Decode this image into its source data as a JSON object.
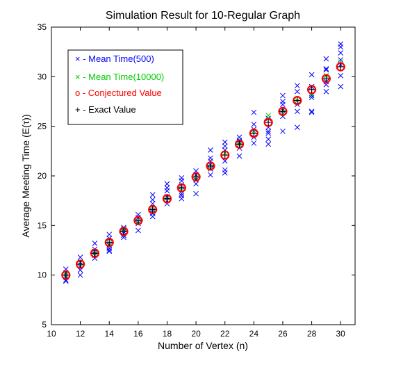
{
  "chart_data": {
    "type": "scatter",
    "title": "Simulation Result for 10-Regular Graph",
    "xlabel": "Number of Vertex (n)",
    "ylabel": "Average Meeting Time (E(τ))",
    "xlim": [
      10,
      31
    ],
    "ylim": [
      5,
      35
    ],
    "xticks": [
      10,
      12,
      14,
      16,
      18,
      20,
      22,
      24,
      26,
      28,
      30
    ],
    "yticks": [
      5,
      10,
      15,
      20,
      25,
      30,
      35
    ],
    "grid": false,
    "legend_position": "top-left",
    "legend": [
      {
        "label": "× - Mean Time(500)",
        "color": "#0000ff"
      },
      {
        "label": "× - Mean Time(10000)",
        "color": "#00cc00"
      },
      {
        "label": "o - Conjectured Value",
        "color": "#ff0000"
      },
      {
        "label": "+ - Exact Value",
        "color": "#000000"
      }
    ],
    "series": [
      {
        "marker": "x",
        "color": "#0000ff",
        "x": [
          11,
          11,
          11,
          11,
          11,
          12,
          12,
          12,
          12,
          12,
          13,
          13,
          13,
          13,
          13,
          14,
          14,
          14,
          14,
          14,
          14,
          15,
          15,
          15,
          15,
          15,
          16,
          16,
          16,
          16,
          16,
          17,
          17,
          17,
          17,
          17,
          17,
          18,
          18,
          18,
          18,
          18,
          18,
          19,
          19,
          19,
          19,
          19,
          19,
          20,
          20,
          20,
          20,
          20,
          21,
          21,
          21,
          21,
          21,
          21,
          22,
          22,
          22,
          22,
          22,
          22,
          23,
          23,
          23,
          23,
          23,
          24,
          24,
          24,
          24,
          24,
          25,
          25,
          25,
          25,
          25,
          25,
          26,
          26,
          26,
          26,
          26,
          26,
          27,
          27,
          27,
          27,
          27,
          28,
          28,
          28,
          28,
          28,
          28,
          29,
          29,
          29,
          29,
          29,
          29,
          30,
          30,
          30,
          30,
          30,
          30,
          30
        ],
        "y": [
          10.6,
          9.5,
          10.2,
          9.8,
          9.4,
          11.8,
          10.5,
          10.0,
          11.3,
          10.9,
          13.2,
          11.7,
          12.6,
          12.0,
          12.4,
          14.1,
          12.4,
          13.7,
          12.7,
          13.0,
          12.5,
          14.6,
          13.8,
          14.8,
          14.2,
          14.0,
          16.1,
          14.5,
          15.2,
          15.8,
          15.4,
          18.1,
          15.9,
          17.2,
          16.5,
          17.6,
          16.2,
          19.2,
          17.2,
          18.5,
          17.9,
          18.8,
          17.5,
          19.8,
          17.7,
          18.9,
          18.2,
          19.5,
          18.0,
          20.5,
          18.2,
          19.6,
          20.1,
          19.2,
          22.6,
          20.1,
          21.5,
          21.8,
          20.7,
          21.1,
          23.4,
          20.3,
          22.6,
          21.5,
          20.6,
          23.0,
          23.9,
          22.0,
          23.4,
          22.8,
          23.6,
          26.4,
          23.3,
          25.2,
          24.7,
          23.9,
          25.8,
          23.2,
          24.5,
          23.7,
          24.9,
          24.3,
          28.1,
          24.5,
          27.2,
          26.6,
          27.5,
          26.0,
          29.1,
          24.9,
          28.5,
          27.2,
          26.5,
          30.2,
          26.5,
          29.0,
          26.4,
          28.1,
          27.9,
          31.8,
          28.5,
          30.8,
          29.2,
          30.7,
          29.5,
          33.3,
          29.0,
          32.4,
          31.7,
          31.2,
          30.1,
          33.0
        ]
      },
      {
        "marker": "x",
        "color": "#00cc00",
        "x": [
          11,
          12,
          13,
          14,
          15,
          16,
          17,
          18,
          19,
          20,
          21,
          22,
          23,
          24,
          25,
          26,
          27,
          28,
          29,
          30
        ],
        "y": [
          10.0,
          11.2,
          12.2,
          13.2,
          14.7,
          15.4,
          16.7,
          17.8,
          18.7,
          19.8,
          20.9,
          22.3,
          23.2,
          24.5,
          26.1,
          26.4,
          27.6,
          28.2,
          30.1,
          31.5
        ]
      },
      {
        "marker": "o",
        "color": "#ff0000",
        "x": [
          11,
          12,
          13,
          14,
          15,
          16,
          17,
          18,
          19,
          20,
          21,
          22,
          23,
          24,
          25,
          26,
          27,
          28,
          29,
          30
        ],
        "y": [
          10.0,
          11.1,
          12.2,
          13.3,
          14.4,
          15.5,
          16.6,
          17.7,
          18.8,
          19.9,
          21.0,
          22.1,
          23.2,
          24.3,
          25.4,
          26.5,
          27.6,
          28.7,
          29.8,
          31.0
        ]
      },
      {
        "marker": "+",
        "color": "#000000",
        "x": [
          11,
          12,
          13,
          14,
          15,
          16,
          17,
          18,
          19,
          20,
          21,
          22,
          23,
          24,
          25,
          26,
          27,
          28,
          29,
          30
        ],
        "y": [
          10.0,
          11.1,
          12.2,
          13.3,
          14.4,
          15.5,
          16.6,
          17.7,
          18.8,
          19.9,
          21.0,
          22.1,
          23.2,
          24.3,
          25.4,
          26.5,
          27.6,
          28.7,
          29.8,
          31.0
        ]
      }
    ]
  }
}
